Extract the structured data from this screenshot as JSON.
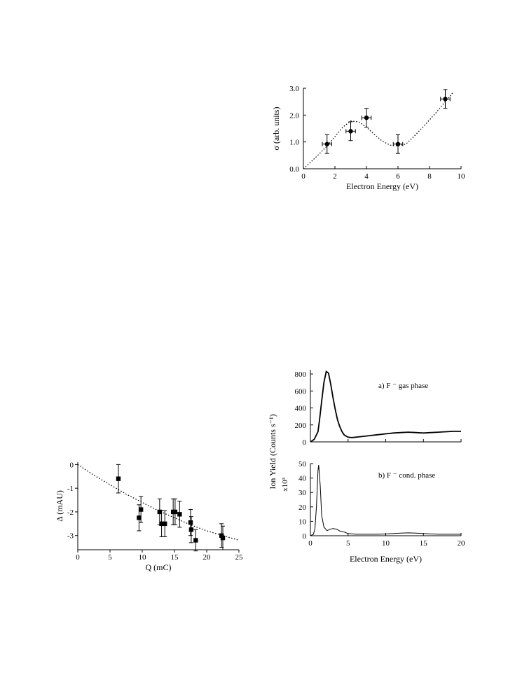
{
  "chart_data": [
    {
      "id": "sigma",
      "type": "scatter",
      "xlabel": "Electron Energy (eV)",
      "ylabel": "σ (arb. units)",
      "xlim": [
        0,
        10
      ],
      "ylim": [
        0,
        3
      ],
      "xticks": [
        "0",
        "2",
        "4",
        "6",
        "8",
        "10"
      ],
      "yticks": [
        "0.0",
        "1.0",
        "2.0",
        "3.0"
      ],
      "grid": false,
      "points": [
        {
          "x": 1.5,
          "y": 0.92,
          "xerr": 0.3,
          "yerr": 0.35
        },
        {
          "x": 3.0,
          "y": 1.4,
          "xerr": 0.3,
          "yerr": 0.35
        },
        {
          "x": 4.0,
          "y": 1.9,
          "xerr": 0.3,
          "yerr": 0.35
        },
        {
          "x": 6.0,
          "y": 0.92,
          "xerr": 0.3,
          "yerr": 0.35
        },
        {
          "x": 9.0,
          "y": 2.6,
          "xerr": 0.3,
          "yerr": 0.35
        }
      ],
      "fit_curve": {
        "style": "dotted",
        "x": [
          0,
          0.5,
          1,
          1.5,
          2,
          2.5,
          3,
          3.5,
          4,
          4.5,
          5,
          5.5,
          6,
          6.5,
          7,
          7.5,
          8,
          8.5,
          9,
          9.5
        ],
        "y": [
          0,
          0.27,
          0.55,
          0.85,
          1.2,
          1.55,
          1.78,
          1.75,
          1.55,
          1.28,
          1.03,
          0.88,
          0.85,
          0.92,
          1.2,
          1.5,
          1.82,
          2.15,
          2.5,
          2.85
        ]
      }
    },
    {
      "id": "delta",
      "type": "scatter",
      "xlabel": "Q  (mC)",
      "ylabel": "Δ (mAU)",
      "xlim": [
        0,
        25
      ],
      "ylim": [
        -3.6,
        0.1
      ],
      "xticks": [
        "0",
        "5",
        "10",
        "15",
        "20",
        "25"
      ],
      "yticks": [
        "0",
        "-1",
        "-2",
        "-3"
      ],
      "grid": false,
      "points": [
        {
          "x": 6.3,
          "y": -0.6,
          "yerr": 0.6
        },
        {
          "x": 9.5,
          "y": -2.25,
          "yerr": 0.55
        },
        {
          "x": 9.8,
          "y": -1.9,
          "yerr": 0.55
        },
        {
          "x": 12.7,
          "y": -2.0,
          "yerr": 0.55
        },
        {
          "x": 13.0,
          "y": -2.5,
          "yerr": 0.55
        },
        {
          "x": 13.5,
          "y": -2.5,
          "yerr": 0.55
        },
        {
          "x": 14.8,
          "y": -2.0,
          "yerr": 0.55
        },
        {
          "x": 15.1,
          "y": -2.0,
          "yerr": 0.55
        },
        {
          "x": 15.8,
          "y": -2.1,
          "yerr": 0.55
        },
        {
          "x": 17.5,
          "y": -2.45,
          "yerr": 0.55
        },
        {
          "x": 17.6,
          "y": -2.75,
          "yerr": 0.55
        },
        {
          "x": 18.3,
          "y": -3.2,
          "yerr": 0.45
        },
        {
          "x": 22.3,
          "y": -3.0,
          "yerr": 0.5
        },
        {
          "x": 22.5,
          "y": -3.1,
          "yerr": 0.5
        }
      ],
      "fit_curve": {
        "style": "dotted",
        "x": [
          0,
          2.5,
          5,
          7.5,
          10,
          12.5,
          15,
          17.5,
          20,
          22.5,
          25
        ],
        "y": [
          0,
          -0.45,
          -0.85,
          -1.25,
          -1.6,
          -1.95,
          -2.25,
          -2.55,
          -2.8,
          -3.0,
          -3.2
        ]
      }
    },
    {
      "id": "ion-yield-gas",
      "type": "line",
      "annotation": "a) F ⁻ gas phase",
      "xlim": [
        0,
        20
      ],
      "ylim": [
        0,
        850
      ],
      "yticks": [
        "0",
        "200",
        "400",
        "600",
        "800"
      ],
      "grid": false,
      "series": [
        {
          "x": [
            0,
            0.5,
            1,
            1.2,
            1.5,
            1.8,
            2.1,
            2.4,
            2.7,
            3.0,
            3.3,
            3.6,
            3.9,
            4.2,
            4.5,
            5,
            5.5,
            6,
            7,
            8,
            9,
            10,
            11,
            12,
            13,
            14,
            15,
            16,
            17,
            18,
            19,
            20
          ],
          "y": [
            0,
            30,
            120,
            250,
            480,
            700,
            830,
            810,
            680,
            520,
            380,
            260,
            180,
            120,
            80,
            55,
            50,
            55,
            65,
            75,
            85,
            95,
            105,
            110,
            115,
            110,
            105,
            110,
            115,
            120,
            125,
            125
          ]
        }
      ]
    },
    {
      "id": "ion-yield-cond",
      "type": "line",
      "annotation": "b) F ⁻  cond. phase",
      "xlabel": "Electron Energy (eV)",
      "xlim": [
        0,
        20
      ],
      "ylim": [
        0,
        50
      ],
      "xticks": [
        "0",
        "5",
        "10",
        "15",
        "20"
      ],
      "yticks": [
        "0",
        "10",
        "20",
        "30",
        "40",
        "50"
      ],
      "grid": false,
      "series": [
        {
          "x": [
            0,
            0.4,
            0.6,
            0.8,
            1.0,
            1.1,
            1.3,
            1.5,
            1.8,
            2.2,
            2.6,
            3.0,
            3.5,
            4.0,
            4.5,
            5,
            6,
            7,
            8,
            9,
            10,
            11,
            12,
            13,
            14,
            15,
            16,
            17,
            18,
            19,
            20
          ],
          "y": [
            0,
            1,
            5,
            20,
            45,
            49,
            35,
            14,
            6,
            3.5,
            4.5,
            5,
            4.5,
            3,
            2.5,
            1.5,
            1,
            1,
            1,
            1,
            1.2,
            1.5,
            1.8,
            2,
            1.8,
            1.5,
            1.2,
            1,
            1,
            1,
            1
          ]
        }
      ]
    }
  ],
  "shared_axis_labels": {
    "ion_yield_y": "Ion Yield (Counts s⁻¹)",
    "multiplier": "x10³"
  }
}
